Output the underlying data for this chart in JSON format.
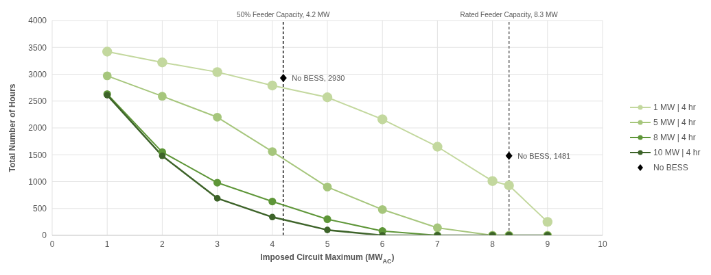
{
  "chart_data": {
    "type": "line",
    "xlabel": "Imposed Circuit Maximum (MW$_{AC}$)",
    "ylabel": "Total Number of Hours",
    "xlim": [
      0,
      10
    ],
    "xticks": [
      0,
      1,
      2,
      3,
      4,
      5,
      6,
      7,
      8,
      9,
      10
    ],
    "ylim": [
      0,
      4000
    ],
    "yticks": [
      0,
      500,
      1000,
      1500,
      2000,
      2500,
      3000,
      3500,
      4000
    ],
    "grid": true,
    "legend": "right",
    "marker": "circle",
    "line_style": "solid",
    "series": [
      {
        "name": "1 MW | 4 hr",
        "color": "#c3d89e",
        "x": [
          1,
          2,
          3,
          4,
          5,
          6,
          7,
          8,
          8.3,
          9
        ],
        "values": [
          3420,
          3220,
          3040,
          2790,
          2570,
          2160,
          1650,
          1010,
          930,
          250
        ]
      },
      {
        "name": "5 MW | 4 hr",
        "color": "#a6c67c",
        "x": [
          1,
          2,
          3,
          4,
          5,
          6,
          7,
          8,
          8.3,
          9
        ],
        "values": [
          2970,
          2590,
          2200,
          1560,
          900,
          480,
          140,
          0,
          0,
          0
        ]
      },
      {
        "name": "8 MW | 4 hr",
        "color": "#5e9638",
        "x": [
          1,
          2,
          3,
          4,
          5,
          6,
          7,
          8,
          8.3,
          9
        ],
        "values": [
          2630,
          1550,
          980,
          630,
          300,
          80,
          0,
          0,
          0,
          0
        ]
      },
      {
        "name": "10 MW | 4 hr",
        "color": "#3d6329",
        "x": [
          1,
          2,
          3,
          4,
          5,
          6,
          7,
          8,
          8.3,
          9
        ],
        "values": [
          2610,
          1480,
          690,
          340,
          100,
          0,
          0,
          0,
          0,
          0
        ]
      },
      {
        "name": "No BESS",
        "type": "scatter",
        "marker": "diamond",
        "color": "#000000",
        "x": [
          4.2,
          8.3
        ],
        "values": [
          2930,
          1481
        ],
        "value_labels": [
          "No BESS, 2930",
          "No BESS, 1481"
        ]
      }
    ],
    "ref_lines": [
      {
        "axis": "x",
        "value": 4.2,
        "label": "50% Feeder Capacity, 4.2 MW",
        "color": "#555555",
        "line_style": "dashed"
      },
      {
        "axis": "x",
        "value": 8.3,
        "label": "Rated Feeder Capacity, 8.3 MW",
        "color": "#888888",
        "line_style": "dashed"
      }
    ]
  }
}
